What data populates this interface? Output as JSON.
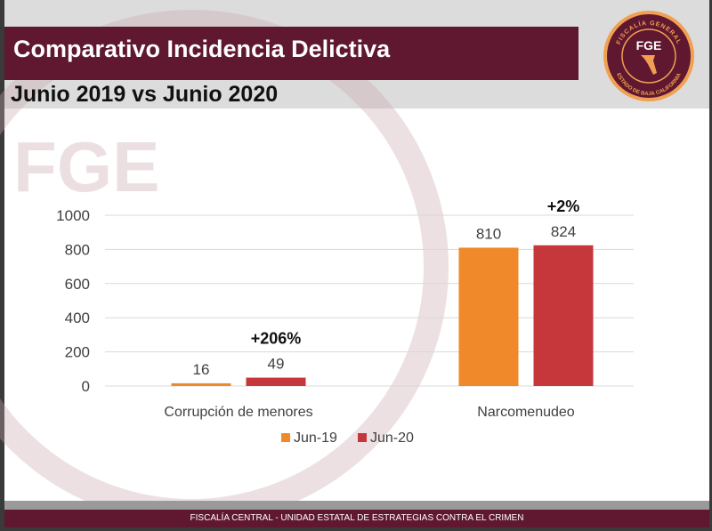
{
  "header": {
    "title": "Comparativo Incidencia Delictiva",
    "subtitle": "Junio 2019 vs Junio 2020"
  },
  "logo": {
    "ring_top": "FISCALÍA GENERAL",
    "center": "FGE",
    "ring_bottom": "ESTADO DE BAJA CALIFORNIA"
  },
  "footer": {
    "text": "FISCALÍA CENTRAL - UNIDAD ESTATAL DE  ESTRATEGIAS CONTRA EL CRIMEN"
  },
  "colors": {
    "brand": "#5f1830",
    "jun19": "#f0892a",
    "jun20": "#c5373a",
    "logo_gold": "#f0a050"
  },
  "chart_data": {
    "type": "bar",
    "categories": [
      "Corrupción de menores",
      "Narcomenudeo"
    ],
    "series": [
      {
        "name": "Jun-19",
        "values": [
          16,
          810
        ]
      },
      {
        "name": "Jun-20",
        "values": [
          49,
          824
        ]
      }
    ],
    "annotations": [
      "+206%",
      "+2%"
    ],
    "yticks": [
      0,
      200,
      400,
      600,
      800,
      1000
    ],
    "ylim": [
      0,
      1000
    ],
    "grid": true,
    "legend": "bottom"
  }
}
